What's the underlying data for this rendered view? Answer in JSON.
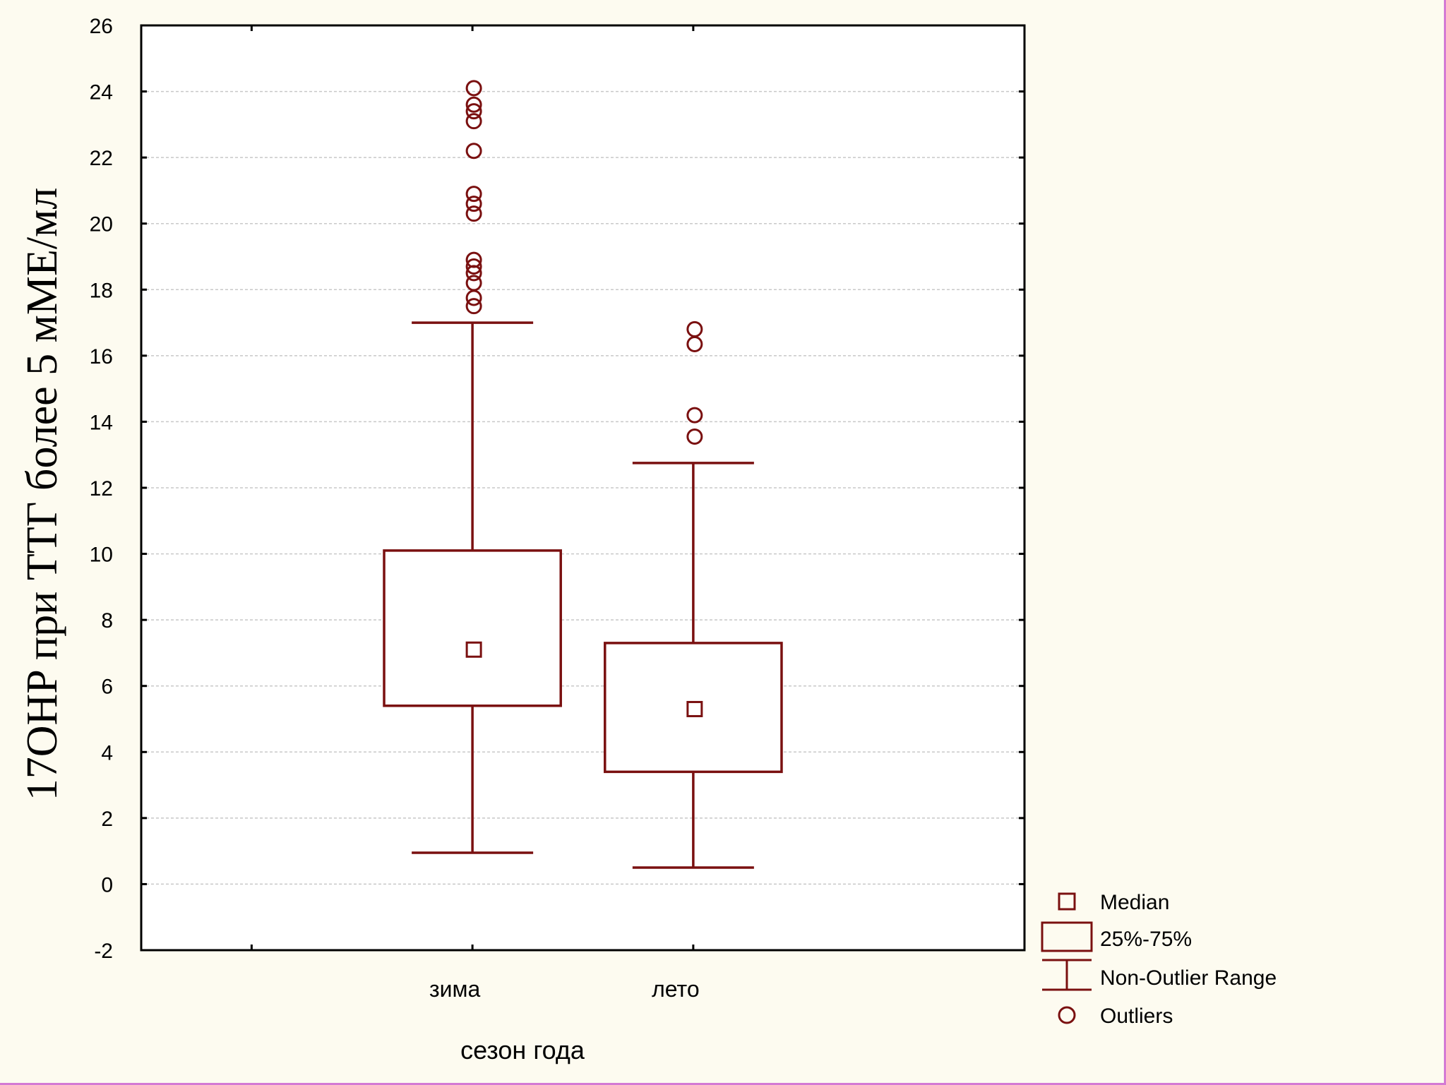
{
  "chart_data": {
    "type": "boxplot",
    "xlabel": "сезон года",
    "ylabel": "17OHP при ТТГ более 5 мМЕ/мл",
    "ylim": [
      -2,
      26
    ],
    "yticks": [
      "-2",
      "0",
      "2",
      "4",
      "6",
      "8",
      "10",
      "12",
      "14",
      "16",
      "18",
      "20",
      "22",
      "24",
      "26"
    ],
    "grid": true,
    "categories": [
      "зима",
      "лето"
    ],
    "boxes": [
      {
        "category": "зима",
        "median": 7.1,
        "q1": 5.4,
        "q3": 10.1,
        "whisker_low": 0.95,
        "whisker_high": 17.0,
        "outliers": [
          17.5,
          17.75,
          18.2,
          18.5,
          18.7,
          18.9,
          20.3,
          20.6,
          20.9,
          22.2,
          23.1,
          23.4,
          23.6,
          24.1
        ]
      },
      {
        "category": "лето",
        "median": 5.3,
        "q1": 3.4,
        "q3": 7.3,
        "whisker_low": 0.5,
        "whisker_high": 12.75,
        "outliers": [
          13.55,
          14.2,
          16.35,
          16.8
        ]
      }
    ],
    "color": "#7a1010",
    "legend": {
      "position": "bottom-right",
      "items": [
        "Median",
        "25%-75%",
        "Non-Outlier Range",
        "Outliers"
      ]
    }
  }
}
